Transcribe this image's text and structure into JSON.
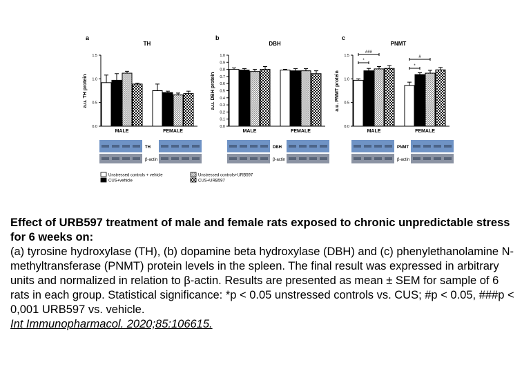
{
  "figure": {
    "panels": [
      {
        "letter": "a",
        "title": "TH",
        "ylabel": "a.u. TH protein",
        "blot_labels": [
          "TH",
          "β-actin"
        ]
      },
      {
        "letter": "b",
        "title": "DBH",
        "ylabel": "a.u. DBH protein",
        "blot_labels": [
          "DBH",
          "β-actin"
        ]
      },
      {
        "letter": "c",
        "title": "PNMT",
        "ylabel": "a.u. PNMT protein",
        "blot_labels": [
          "PNMT",
          "β-actin"
        ]
      }
    ],
    "legend": [
      {
        "label": "Unstressed controls + vehicle",
        "fill": "white"
      },
      {
        "label": "CUS+vehicle",
        "fill": "black"
      },
      {
        "label": "Unstressed controls+URB597",
        "fill": "dots"
      },
      {
        "label": "CUS+URB597",
        "fill": "checker"
      }
    ],
    "significance": [
      {
        "panel": 2,
        "group": 0,
        "from": 0,
        "to": 2,
        "text": "###"
      },
      {
        "panel": 2,
        "group": 0,
        "from": 0,
        "to": 1,
        "text": "*"
      },
      {
        "panel": 2,
        "group": 1,
        "from": 0,
        "to": 2,
        "text": "#"
      },
      {
        "panel": 2,
        "group": 1,
        "from": 0,
        "to": 1,
        "text": "*"
      }
    ]
  },
  "chart_data": [
    {
      "type": "bar",
      "title": "TH",
      "ylabel": "a.u. TH protein",
      "categories": [
        "MALE",
        "FEMALE"
      ],
      "ylim": [
        0,
        1.5
      ],
      "yticks": [
        "0.0",
        "0.5",
        "1.0",
        "1.5"
      ],
      "series": [
        {
          "name": "Unstressed controls + vehicle",
          "values": [
            0.92,
            0.75
          ],
          "errors": [
            0.16,
            0.14
          ]
        },
        {
          "name": "CUS+vehicle",
          "values": [
            0.97,
            0.71
          ],
          "errors": [
            0.14,
            0.03
          ]
        },
        {
          "name": "Unstressed controls+URB597",
          "values": [
            1.12,
            0.66
          ],
          "errors": [
            0.04,
            0.04
          ]
        },
        {
          "name": "CUS+URB597",
          "values": [
            0.89,
            0.69
          ],
          "errors": [
            0.02,
            0.05
          ]
        }
      ]
    },
    {
      "type": "bar",
      "title": "DBH",
      "ylabel": "a.u. DBH protein",
      "categories": [
        "MALE",
        "FEMALE"
      ],
      "ylim": [
        0,
        1.0
      ],
      "yticks": [
        "0.0",
        "0.1",
        "0.2",
        "0.3",
        "0.4",
        "0.5",
        "0.6",
        "0.7",
        "0.8",
        "0.9",
        "1.0"
      ],
      "series": [
        {
          "name": "Unstressed controls + vehicle",
          "values": [
            0.8,
            0.79
          ],
          "errors": [
            0.02,
            0.01
          ]
        },
        {
          "name": "CUS+vehicle",
          "values": [
            0.79,
            0.78
          ],
          "errors": [
            0.02,
            0.03
          ]
        },
        {
          "name": "Unstressed controls+URB597",
          "values": [
            0.77,
            0.78
          ],
          "errors": [
            0.03,
            0.03
          ]
        },
        {
          "name": "CUS+URB597",
          "values": [
            0.8,
            0.74
          ],
          "errors": [
            0.04,
            0.04
          ]
        }
      ]
    },
    {
      "type": "bar",
      "title": "PNMT",
      "ylabel": "a.u. PNMT protein",
      "categories": [
        "MALE",
        "FEMALE"
      ],
      "ylim": [
        0,
        1.5
      ],
      "yticks": [
        "0.0",
        "0.5",
        "1.0",
        "1.5"
      ],
      "series": [
        {
          "name": "Unstressed controls + vehicle",
          "values": [
            0.97,
            0.86
          ],
          "errors": [
            0.03,
            0.07
          ]
        },
        {
          "name": "CUS+vehicle",
          "values": [
            1.17,
            1.09
          ],
          "errors": [
            0.05,
            0.04
          ]
        },
        {
          "name": "Unstressed controls+URB597",
          "values": [
            1.21,
            1.12
          ],
          "errors": [
            0.05,
            0.06
          ]
        },
        {
          "name": "CUS+URB597",
          "values": [
            1.22,
            1.19
          ],
          "errors": [
            0.06,
            0.05
          ]
        }
      ]
    }
  ],
  "caption": {
    "title": "Effect of URB597 treatment of male and female rats exposed to chronic unpredictable stress for 6 weeks on:",
    "body": "(a) tyrosine hydroxylase (TH), (b) dopamine beta hydroxylase (DBH) and (c) phenylethanolamine N-methyltransferase (PNMT) protein levels in the spleen. The final result was expressed in arbitrary units and normalized in relation to β-actin. Results are presented as mean ± SEM for sample of 6 rats in each group. Statistical significance: *p < 0.05 unstressed controls vs. CUS; #p < 0.05, ###p < 0,001 URB597 vs. vehicle.",
    "citation": "Int Immunopharmacol. 2020;85:106615."
  }
}
